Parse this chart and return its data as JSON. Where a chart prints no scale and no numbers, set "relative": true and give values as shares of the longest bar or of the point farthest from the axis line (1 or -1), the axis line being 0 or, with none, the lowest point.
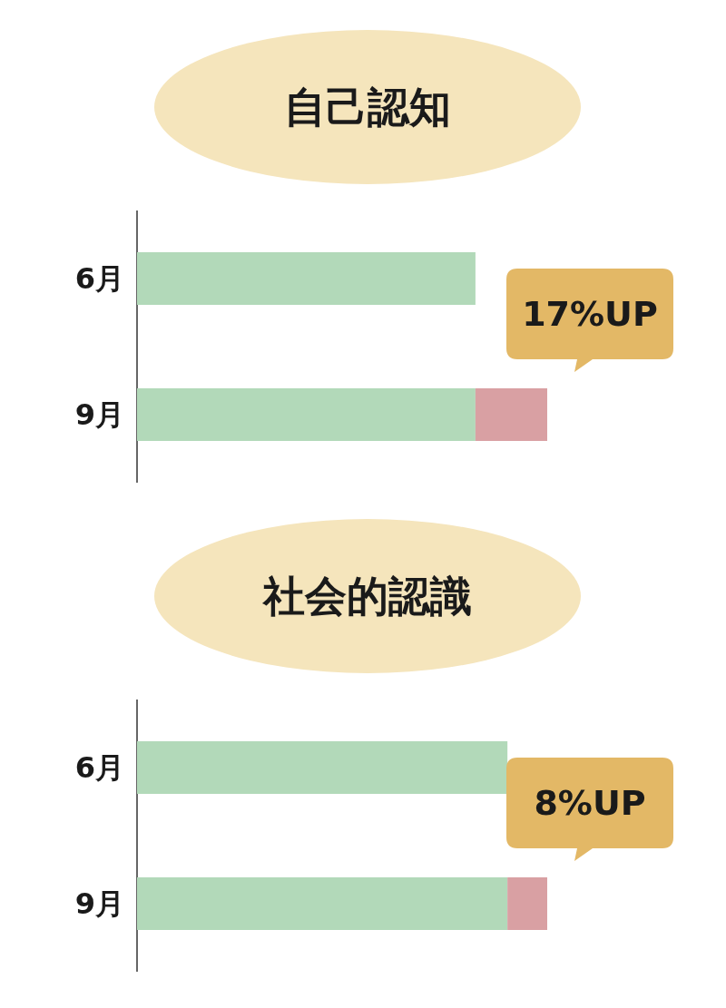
{
  "chart_data": [
    {
      "type": "bar",
      "title": "自己認知",
      "orientation": "horizontal",
      "stacked": true,
      "relative": true,
      "categories": [
        "6月",
        "9月"
      ],
      "series": [
        {
          "color": "#b2d9b9",
          "values": [
            0.825,
            0.825
          ]
        },
        {
          "color": "#d9a0a3",
          "values": [
            null,
            0.175
          ]
        }
      ],
      "annotations": [
        "17%UP"
      ]
    },
    {
      "type": "bar",
      "title": "社会的認識",
      "orientation": "horizontal",
      "stacked": true,
      "relative": true,
      "categories": [
        "6月",
        "9月"
      ],
      "series": [
        {
          "color": "#b2d9b9",
          "values": [
            0.903,
            0.903
          ]
        },
        {
          "color": "#d9a0a3",
          "values": [
            null,
            0.097
          ]
        }
      ],
      "annotations": [
        "8%UP"
      ]
    }
  ]
}
